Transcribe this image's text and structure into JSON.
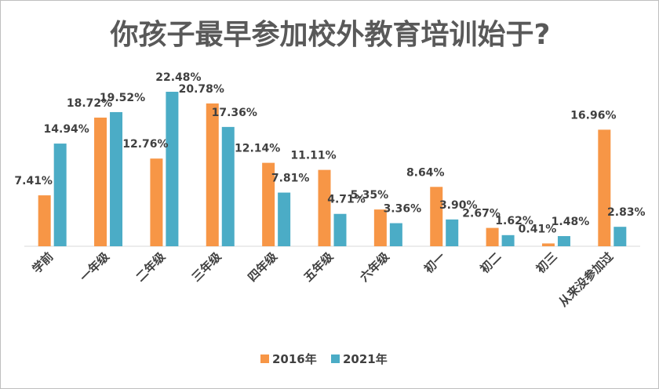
{
  "chart_data": {
    "type": "bar",
    "title": "你孩子最早参加校外教育培训始于?",
    "categories": [
      "学前",
      "一年级",
      "二年级",
      "三年级",
      "四年级",
      "五年级",
      "六年级",
      "初一",
      "初二",
      "初三",
      "从来没参加过"
    ],
    "series": [
      {
        "name": "2016年",
        "color": "#f79646",
        "values": [
          7.41,
          18.72,
          12.76,
          20.78,
          12.14,
          11.11,
          5.35,
          8.64,
          2.67,
          0.41,
          16.96
        ],
        "labels": [
          "7.41%",
          "18.72%",
          "12.76%",
          "20.78%",
          "12.14%",
          "11.11%",
          "5.35%",
          "8.64%",
          "2.67%",
          "0.41%",
          "16.96%"
        ]
      },
      {
        "name": "2021年",
        "color": "#4bacc6",
        "values": [
          14.94,
          19.52,
          22.48,
          17.36,
          7.81,
          4.71,
          3.36,
          3.9,
          1.62,
          1.48,
          2.83
        ],
        "labels": [
          "14.94%",
          "19.52%",
          "22.48%",
          "17.36%",
          "7.81%",
          "4.71%",
          "3.36%",
          "3.90%",
          "1.62%",
          "1.48%",
          "2.83%"
        ]
      }
    ],
    "ylim": [
      0,
      22.48
    ],
    "grid": false,
    "legend_position": "bottom",
    "xlabel": "",
    "ylabel": ""
  }
}
